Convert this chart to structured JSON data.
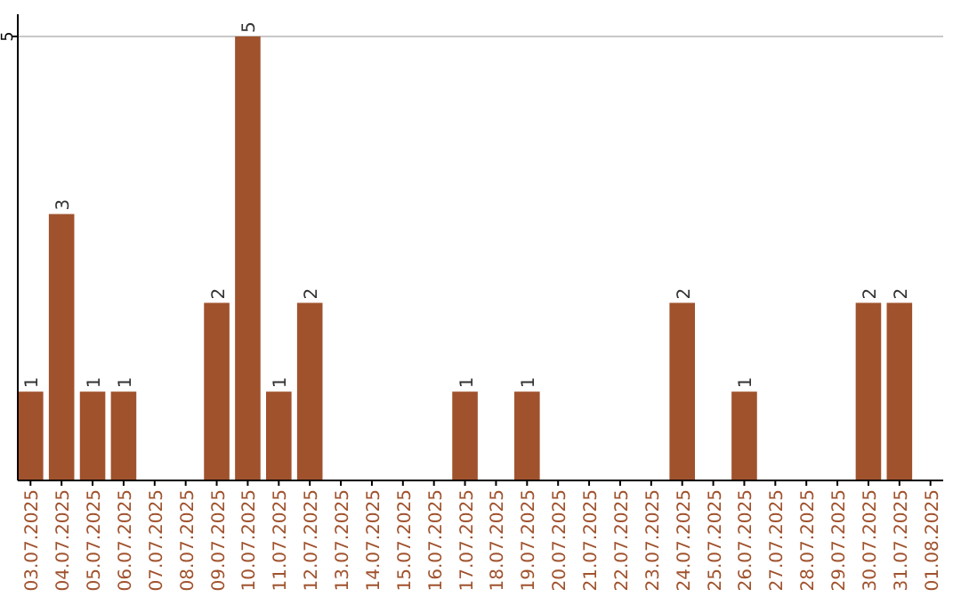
{
  "chart_data": {
    "type": "bar",
    "categories": [
      "03.07.2025",
      "04.07.2025",
      "05.07.2025",
      "06.07.2025",
      "07.07.2025",
      "08.07.2025",
      "09.07.2025",
      "10.07.2025",
      "11.07.2025",
      "12.07.2025",
      "13.07.2025",
      "14.07.2025",
      "15.07.2025",
      "16.07.2025",
      "17.07.2025",
      "18.07.2025",
      "19.07.2025",
      "20.07.2025",
      "21.07.2025",
      "22.07.2025",
      "23.07.2025",
      "24.07.2025",
      "25.07.2025",
      "26.07.2025",
      "27.07.2025",
      "28.07.2025",
      "29.07.2025",
      "30.07.2025",
      "31.07.2025",
      "01.08.2025"
    ],
    "values": [
      1,
      3,
      1,
      1,
      0,
      0,
      2,
      5,
      1,
      2,
      0,
      0,
      0,
      0,
      1,
      0,
      1,
      0,
      0,
      0,
      0,
      2,
      0,
      1,
      0,
      0,
      0,
      2,
      2,
      0
    ],
    "value_labels": [
      "1",
      "3",
      "1",
      "1",
      null,
      null,
      "2",
      "5",
      "1",
      "2",
      null,
      null,
      null,
      null,
      "1",
      null,
      "1",
      null,
      null,
      null,
      null,
      "2",
      null,
      "1",
      null,
      null,
      null,
      "2",
      "2",
      null
    ],
    "color": "#a0522d",
    "ylim": [
      0,
      5.25
    ],
    "yticks": [
      5
    ],
    "grid": "y"
  }
}
